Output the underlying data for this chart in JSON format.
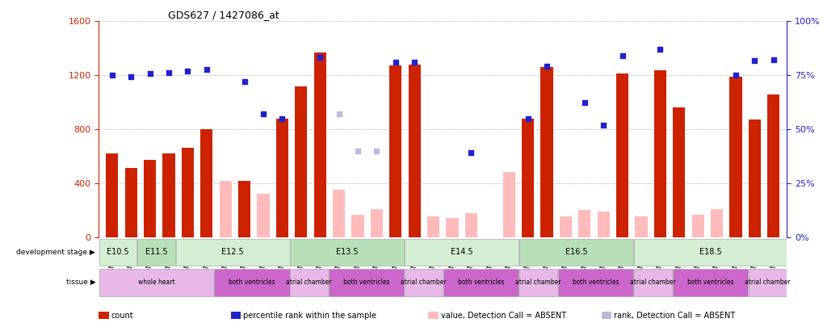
{
  "title": "GDS627 / 1427086_at",
  "samples": [
    "GSM25150",
    "GSM25151",
    "GSM25152",
    "GSM25153",
    "GSM25154",
    "GSM25155",
    "GSM25156",
    "GSM25157",
    "GSM25158",
    "GSM25159",
    "GSM25160",
    "GSM25161",
    "GSM25162",
    "GSM25163",
    "GSM25164",
    "GSM25165",
    "GSM25166",
    "GSM25167",
    "GSM25168",
    "GSM25169",
    "GSM25170",
    "GSM25171",
    "GSM25172",
    "GSM25173",
    "GSM25174",
    "GSM25175",
    "GSM25176",
    "GSM25177",
    "GSM25178",
    "GSM25179",
    "GSM25180",
    "GSM25181",
    "GSM25182",
    "GSM25183",
    "GSM25184",
    "GSM25185"
  ],
  "count_values": [
    620,
    510,
    570,
    620,
    660,
    800,
    null,
    420,
    null,
    880,
    1120,
    1370,
    null,
    null,
    null,
    1270,
    1280,
    null,
    null,
    null,
    null,
    null,
    875,
    1260,
    null,
    null,
    null,
    1210,
    null,
    1235,
    960,
    null,
    null,
    1190,
    870,
    1060
  ],
  "count_absent_values": [
    null,
    null,
    null,
    null,
    null,
    null,
    420,
    null,
    320,
    null,
    null,
    null,
    350,
    165,
    205,
    null,
    null,
    155,
    140,
    180,
    null,
    480,
    null,
    null,
    155,
    200,
    190,
    null,
    155,
    null,
    null,
    165,
    205,
    null,
    null,
    null
  ],
  "rank_present_values": [
    1200,
    1190,
    1210,
    1220,
    1230,
    1245,
    null,
    null,
    null,
    null,
    null,
    1330,
    null,
    null,
    null,
    1295,
    1295,
    null,
    null,
    null,
    null,
    null,
    880,
    1265,
    null,
    null,
    null,
    1345,
    null,
    1390,
    null,
    null,
    null,
    1200,
    1310,
    1315
  ],
  "rank_absent_values": [
    null,
    null,
    null,
    null,
    null,
    null,
    null,
    1155,
    912,
    880,
    null,
    null,
    null,
    null,
    null,
    null,
    null,
    null,
    null,
    625,
    null,
    null,
    null,
    null,
    null,
    995,
    830,
    null,
    null,
    null,
    null,
    null,
    null,
    null,
    null,
    null
  ],
  "rank_absent_light_values": [
    null,
    null,
    null,
    null,
    null,
    null,
    null,
    null,
    null,
    null,
    null,
    null,
    912,
    640,
    640,
    null,
    null,
    null,
    null,
    null,
    null,
    null,
    null,
    null,
    null,
    null,
    null,
    null,
    null,
    null,
    null,
    null,
    null,
    null,
    null,
    null
  ],
  "dev_stages": [
    {
      "label": "E10.5",
      "start": 0,
      "end": 2
    },
    {
      "label": "E11.5",
      "start": 2,
      "end": 4
    },
    {
      "label": "E12.5",
      "start": 4,
      "end": 10
    },
    {
      "label": "E13.5",
      "start": 10,
      "end": 16
    },
    {
      "label": "E14.5",
      "start": 16,
      "end": 22
    },
    {
      "label": "E16.5",
      "start": 22,
      "end": 28
    },
    {
      "label": "E18.5",
      "start": 28,
      "end": 36
    }
  ],
  "dev_stage_colors": [
    "#d4eed4",
    "#b8e0b8",
    "#d4eed4",
    "#b8e0b8",
    "#d4eed4",
    "#b8e0b8",
    "#d4eed4"
  ],
  "tissues": [
    {
      "label": "whole heart",
      "start": 0,
      "end": 6
    },
    {
      "label": "both ventricles",
      "start": 6,
      "end": 10
    },
    {
      "label": "atrial chamber",
      "start": 10,
      "end": 12
    },
    {
      "label": "both ventricles",
      "start": 12,
      "end": 16
    },
    {
      "label": "atrial chamber",
      "start": 16,
      "end": 18
    },
    {
      "label": "both ventricles",
      "start": 18,
      "end": 22
    },
    {
      "label": "atrial chamber",
      "start": 22,
      "end": 24
    },
    {
      "label": "both ventricles",
      "start": 24,
      "end": 28
    },
    {
      "label": "atrial chamber",
      "start": 28,
      "end": 30
    },
    {
      "label": "both ventricles",
      "start": 30,
      "end": 34
    },
    {
      "label": "atrial chamber",
      "start": 34,
      "end": 36
    }
  ],
  "tissue_colors": {
    "whole heart": "#e8b8e8",
    "both ventricles": "#cc66cc",
    "atrial chamber": "#e8b8e8"
  },
  "ylim_left": [
    0,
    1600
  ],
  "ylim_right": [
    0,
    100
  ],
  "yticks_left": [
    0,
    400,
    800,
    1200,
    1600
  ],
  "yticks_right": [
    0,
    25,
    50,
    75,
    100
  ],
  "bar_color": "#cc2200",
  "bar_absent_color": "#ffbbbb",
  "dot_color": "#2222cc",
  "dot_absent_color": "#9999cc",
  "dot_absent_light_color": "#bbbbdd",
  "bg_color": "#ffffff",
  "grid_color": "#666666",
  "row_bg_color": "#dddddd"
}
